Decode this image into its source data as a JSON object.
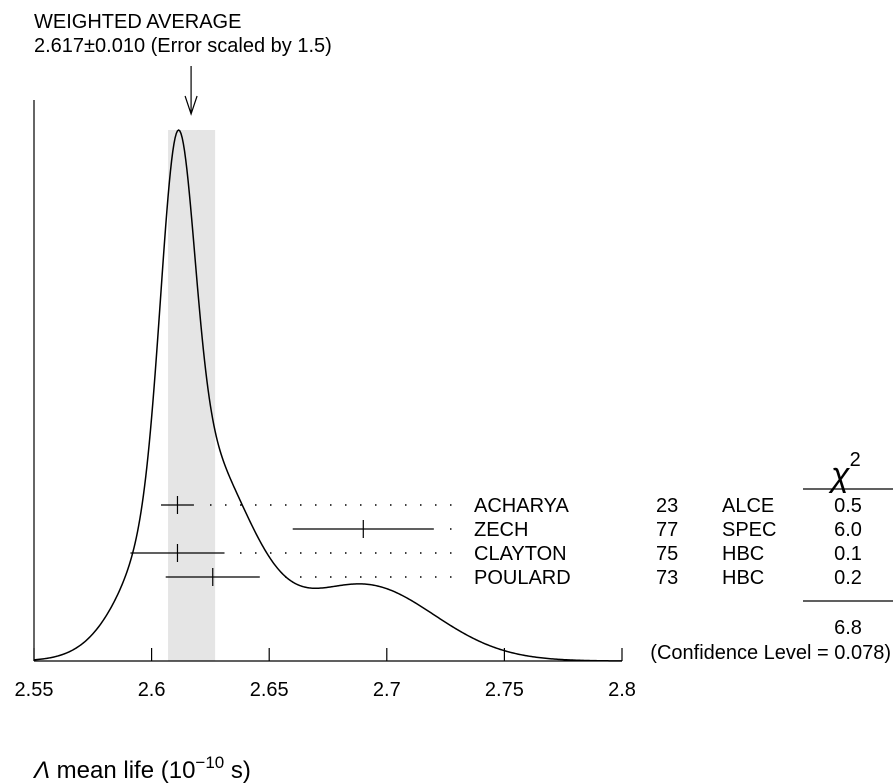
{
  "header": {
    "title": "WEIGHTED AVERAGE",
    "subtitle": "2.617±0.010 (Error scaled by 1.5)"
  },
  "chi_header": "χ",
  "chi_exp": "2",
  "confidence": "(Confidence Level = 0.078)",
  "chi_total": "6.8",
  "chart_data": {
    "type": "ideogram",
    "title": "WEIGHTED AVERAGE",
    "subtitle": "2.617±0.010 (Error scaled by 1.5)",
    "xlabel": "Λ mean life (10−10 s)",
    "xlabel_parts": {
      "symbol": "Λ",
      "text": " mean life (10",
      "exp": "−10",
      "unit": " s)"
    },
    "xlim": [
      2.55,
      2.8
    ],
    "ticks": [
      2.55,
      2.6,
      2.65,
      2.7,
      2.75,
      2.8
    ],
    "tick_labels": [
      "2.55",
      "2.6",
      "2.65",
      "2.7",
      "2.75",
      "2.8"
    ],
    "weighted_average": {
      "value": 2.617,
      "error": 0.01
    },
    "measurements": [
      {
        "author": "ACHARYA",
        "year": "23",
        "tech": "ALCE",
        "chi2": "0.5",
        "value": 2.611,
        "err_lo": 0.007,
        "err_hi": 0.007
      },
      {
        "author": "ZECH",
        "year": "77",
        "tech": "SPEC",
        "chi2": "6.0",
        "value": 2.69,
        "err_lo": 0.03,
        "err_hi": 0.03
      },
      {
        "author": "CLAYTON",
        "year": "75",
        "tech": "HBC",
        "chi2": "0.1",
        "value": 2.611,
        "err_lo": 0.02,
        "err_hi": 0.02
      },
      {
        "author": "POULARD",
        "year": "73",
        "tech": "HBC",
        "chi2": "0.2",
        "value": 2.626,
        "err_lo": 0.02,
        "err_hi": 0.02
      }
    ],
    "chi2_total": "6.8",
    "confidence_level": "(Confidence Level = 0.078)",
    "grid": false,
    "colors": {
      "band": "#e5e5e5",
      "line": "#000000"
    }
  }
}
